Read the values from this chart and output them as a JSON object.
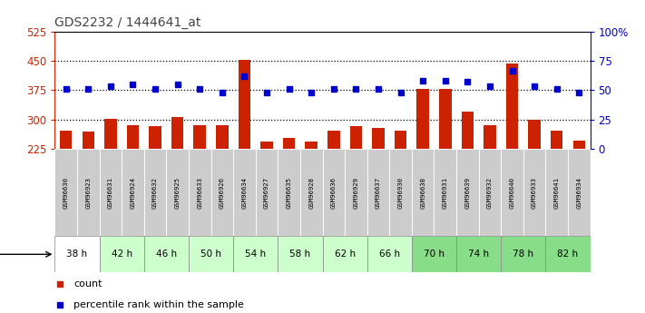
{
  "title": "GDS2232 / 1444641_at",
  "samples": [
    "GSM96630",
    "GSM96923",
    "GSM96631",
    "GSM96924",
    "GSM96632",
    "GSM96925",
    "GSM96633",
    "GSM96926",
    "GSM96634",
    "GSM96927",
    "GSM96635",
    "GSM96928",
    "GSM96636",
    "GSM96929",
    "GSM96637",
    "GSM96930",
    "GSM96638",
    "GSM96931",
    "GSM96639",
    "GSM96932",
    "GSM96640",
    "GSM96933",
    "GSM96641",
    "GSM96934"
  ],
  "counts": [
    271,
    268,
    302,
    286,
    283,
    307,
    284,
    284,
    452,
    243,
    252,
    243,
    270,
    282,
    277,
    271,
    378,
    378,
    320,
    285,
    443,
    298,
    271,
    245
  ],
  "percentile": [
    51,
    51,
    53,
    55,
    51,
    55,
    51,
    48,
    62,
    48,
    51,
    48,
    51,
    51,
    51,
    48,
    58,
    58,
    57,
    53,
    66,
    53,
    51,
    48
  ],
  "time_labels": [
    "38 h",
    "42 h",
    "46 h",
    "50 h",
    "54 h",
    "58 h",
    "62 h",
    "66 h",
    "70 h",
    "74 h",
    "78 h",
    "82 h"
  ],
  "time_colors": [
    "#ffffff",
    "#ccffcc",
    "#ccffcc",
    "#ccffcc",
    "#ccffcc",
    "#ccffcc",
    "#ccffcc",
    "#ccffcc",
    "#88dd88",
    "#88dd88",
    "#88dd88",
    "#88dd88"
  ],
  "ylim_left": [
    225,
    525
  ],
  "ylim_right": [
    0,
    100
  ],
  "yticks_left": [
    225,
    300,
    375,
    450,
    525
  ],
  "yticks_right": [
    0,
    25,
    50,
    75,
    100
  ],
  "bar_color": "#cc2200",
  "dot_color": "#0000cc",
  "bg_color": "#ffffff",
  "plot_bg": "#ffffff",
  "sample_bg": "#cccccc",
  "left_tick_color": "#cc2200",
  "right_tick_color": "#0000cc",
  "grid_dotted_vals": [
    300,
    375,
    450
  ],
  "samples_per_group": 2,
  "bar_width": 0.55,
  "dot_size": 5
}
